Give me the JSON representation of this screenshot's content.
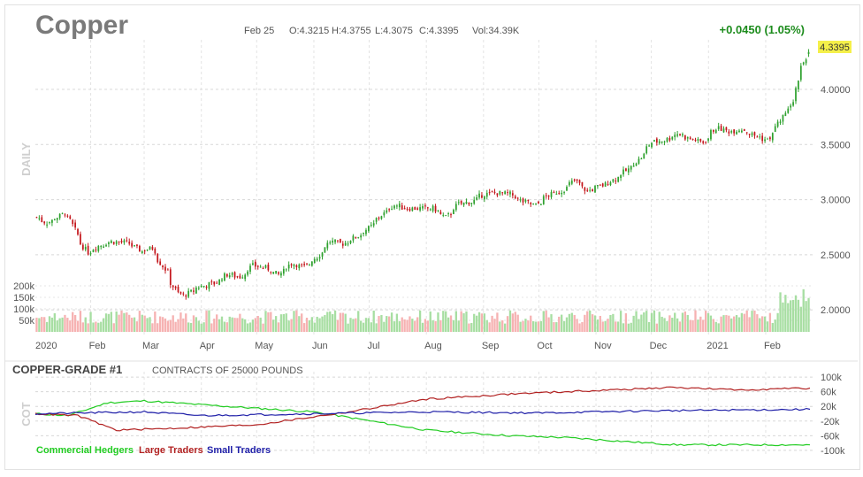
{
  "header": {
    "symbol": "Copper",
    "date": "Feb 25",
    "open": "O:4.3215",
    "high": "H:4.3755",
    "low": "L:4.3075",
    "close": "C:4.3395",
    "volume": "Vol:34.39K",
    "change": "+0.0450 (1.05%)",
    "last_price": "4.3395"
  },
  "colors": {
    "up": "#2ea12e",
    "down": "#c4161c",
    "vol_up": "#a7dea2",
    "vol_down": "#f6b2b2",
    "commercial": "#22cc22",
    "large": "#b22222",
    "small": "#1f1fa8",
    "price_tag": "#f5f04a",
    "change_green": "#1d8c1d"
  },
  "price_panel": {
    "period_label": "DAILY",
    "price_ticks": [
      "4.0000",
      "3.5000",
      "3.0000",
      "2.5000",
      "2.0000"
    ],
    "volume_ticks": [
      "200k",
      "150k",
      "100k",
      "50k"
    ],
    "month_labels": [
      "2020",
      "Feb",
      "Mar",
      "Apr",
      "May",
      "Jun",
      "Jul",
      "Aug",
      "Sep",
      "Oct",
      "Nov",
      "Dec",
      "2021",
      "Feb"
    ]
  },
  "cot_panel": {
    "title": "COPPER-GRADE #1",
    "subtitle": "CONTRACTS OF 25000 POUNDS",
    "side_label": "COT",
    "ticks": [
      "100k",
      "60k",
      "20k",
      "-20k",
      "-60k",
      "-100k"
    ],
    "legend": [
      "Commercial Hedgers",
      "Large Traders",
      "Small Traders"
    ]
  },
  "chart_data": [
    {
      "type": "candlestick",
      "title": "Copper",
      "ylim": [
        1.8,
        4.45
      ],
      "x_labels": [
        "2020",
        "Feb",
        "Mar",
        "Apr",
        "May",
        "Jun",
        "Jul",
        "Aug",
        "Sep",
        "Oct",
        "Nov",
        "Dec",
        "2021",
        "Feb"
      ],
      "close_path": [
        [
          "2020-01-02",
          2.84
        ],
        [
          "2020-01-08",
          2.79
        ],
        [
          "2020-01-15",
          2.85
        ],
        [
          "2020-01-17",
          2.88
        ],
        [
          "2020-01-21",
          2.81
        ],
        [
          "2020-01-24",
          2.68
        ],
        [
          "2020-01-30",
          2.52
        ],
        [
          "2020-02-05",
          2.58
        ],
        [
          "2020-02-12",
          2.62
        ],
        [
          "2020-02-20",
          2.61
        ],
        [
          "2020-02-24",
          2.58
        ],
        [
          "2020-02-28",
          2.53
        ],
        [
          "2020-03-05",
          2.56
        ],
        [
          "2020-03-12",
          2.37
        ],
        [
          "2020-03-19",
          2.15
        ],
        [
          "2020-03-23",
          2.13
        ],
        [
          "2020-03-31",
          2.21
        ],
        [
          "2020-04-08",
          2.24
        ],
        [
          "2020-04-15",
          2.32
        ],
        [
          "2020-04-22",
          2.3
        ],
        [
          "2020-04-29",
          2.4
        ],
        [
          "2020-05-06",
          2.38
        ],
        [
          "2020-05-13",
          2.32
        ],
        [
          "2020-05-20",
          2.42
        ],
        [
          "2020-05-27",
          2.39
        ],
        [
          "2020-06-03",
          2.48
        ],
        [
          "2020-06-10",
          2.62
        ],
        [
          "2020-06-17",
          2.6
        ],
        [
          "2020-06-24",
          2.66
        ],
        [
          "2020-07-01",
          2.74
        ],
        [
          "2020-07-08",
          2.86
        ],
        [
          "2020-07-15",
          2.95
        ],
        [
          "2020-07-22",
          2.92
        ],
        [
          "2020-07-29",
          2.92
        ],
        [
          "2020-08-05",
          2.92
        ],
        [
          "2020-08-12",
          2.84
        ],
        [
          "2020-08-19",
          2.96
        ],
        [
          "2020-08-26",
          2.98
        ],
        [
          "2020-09-02",
          3.05
        ],
        [
          "2020-09-09",
          3.06
        ],
        [
          "2020-09-16",
          3.05
        ],
        [
          "2020-09-23",
          2.98
        ],
        [
          "2020-09-30",
          2.95
        ],
        [
          "2020-10-07",
          3.04
        ],
        [
          "2020-10-14",
          3.08
        ],
        [
          "2020-10-21",
          3.17
        ],
        [
          "2020-10-28",
          3.08
        ],
        [
          "2020-11-04",
          3.12
        ],
        [
          "2020-11-11",
          3.18
        ],
        [
          "2020-11-18",
          3.26
        ],
        [
          "2020-11-25",
          3.36
        ],
        [
          "2020-12-02",
          3.52
        ],
        [
          "2020-12-09",
          3.54
        ],
        [
          "2020-12-16",
          3.6
        ],
        [
          "2020-12-23",
          3.55
        ],
        [
          "2020-12-30",
          3.52
        ],
        [
          "2021-01-06",
          3.65
        ],
        [
          "2021-01-13",
          3.62
        ],
        [
          "2021-01-20",
          3.64
        ],
        [
          "2021-01-27",
          3.58
        ],
        [
          "2021-02-03",
          3.54
        ],
        [
          "2021-02-10",
          3.72
        ],
        [
          "2021-02-17",
          3.9
        ],
        [
          "2021-02-19",
          4.1
        ],
        [
          "2021-02-23",
          4.25
        ],
        [
          "2021-02-25",
          4.3395
        ]
      ],
      "last_bar": {
        "date": "Feb 25",
        "open": 4.3215,
        "high": 4.3755,
        "low": 4.3075,
        "close": 4.3395,
        "volume": "34.39K"
      }
    },
    {
      "type": "bar",
      "title": "Volume",
      "ylim": [
        0,
        250000
      ],
      "y_ticks": [
        "200k",
        "150k",
        "100k",
        "50k"
      ],
      "typical_daily_volume": 65000,
      "recent_peak_volume": 195000
    },
    {
      "type": "line",
      "title": "COPPER-GRADE #1",
      "subtitle": "CONTRACTS OF 25000 POUNDS",
      "ylim": [
        -110000,
        110000
      ],
      "y_ticks": [
        "100k",
        "60k",
        "20k",
        "-20k",
        "-60k",
        "-100k"
      ],
      "series": [
        {
          "name": "Commercial Hedgers",
          "points": [
            [
              "2020-01-02",
              0
            ],
            [
              "2020-01-20",
              -5000
            ],
            [
              "2020-02-10",
              30000
            ],
            [
              "2020-03-01",
              35000
            ],
            [
              "2020-04-15",
              20000
            ],
            [
              "2020-06-01",
              5000
            ],
            [
              "2020-06-20",
              -10000
            ],
            [
              "2020-08-01",
              -45000
            ],
            [
              "2020-09-15",
              -60000
            ],
            [
              "2020-10-15",
              -65000
            ],
            [
              "2020-12-15",
              -85000
            ],
            [
              "2021-02-25",
              -85000
            ]
          ]
        },
        {
          "name": "Large Traders",
          "points": [
            [
              "2020-01-02",
              0
            ],
            [
              "2020-01-25",
              -5000
            ],
            [
              "2020-02-15",
              -45000
            ],
            [
              "2020-03-15",
              -40000
            ],
            [
              "2020-05-01",
              -30000
            ],
            [
              "2020-06-20",
              5000
            ],
            [
              "2020-08-01",
              40000
            ],
            [
              "2020-09-20",
              55000
            ],
            [
              "2020-10-15",
              60000
            ],
            [
              "2020-12-15",
              72000
            ],
            [
              "2021-01-15",
              65000
            ],
            [
              "2021-02-25",
              70000
            ]
          ]
        },
        {
          "name": "Small Traders",
          "points": [
            [
              "2020-01-02",
              0
            ],
            [
              "2020-03-01",
              5000
            ],
            [
              "2020-04-01",
              -5000
            ],
            [
              "2020-06-01",
              0
            ],
            [
              "2020-08-01",
              5000
            ],
            [
              "2020-10-01",
              2000
            ],
            [
              "2020-12-01",
              8000
            ],
            [
              "2021-02-25",
              12000
            ]
          ]
        }
      ]
    }
  ]
}
